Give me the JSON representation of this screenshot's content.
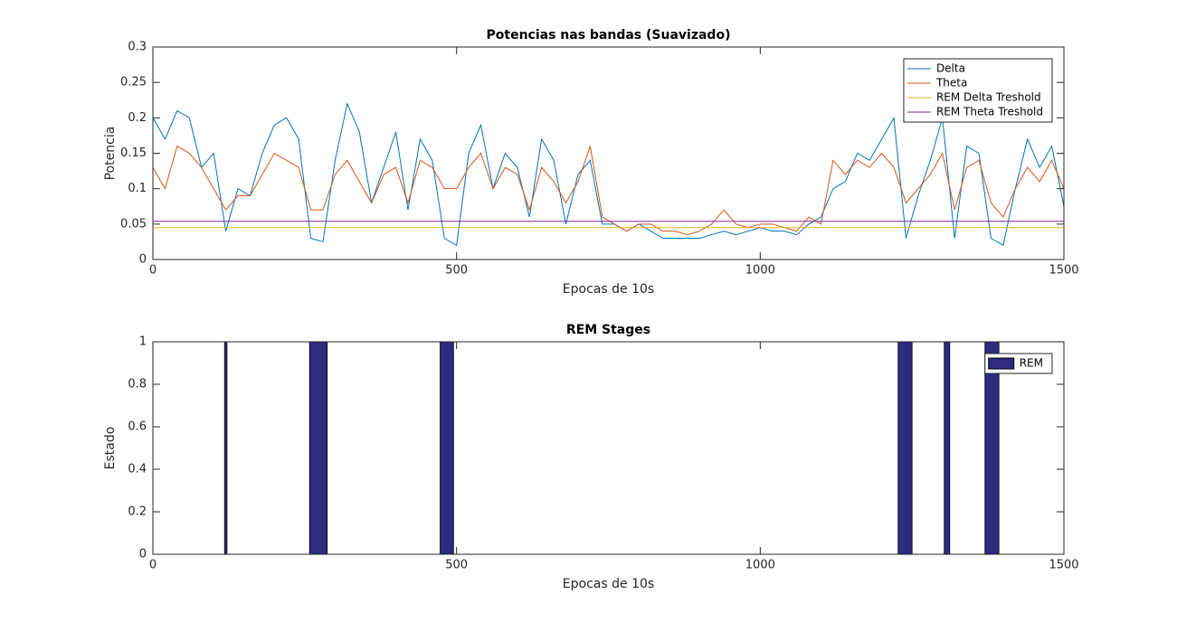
{
  "chart_data": [
    {
      "type": "line",
      "title": "Potencias nas bandas (Suavizado)",
      "x_label": "Epocas de 10s",
      "y_label": "Potencia",
      "x": [
        0,
        20,
        40,
        60,
        80,
        100,
        120,
        140,
        160,
        180,
        200,
        220,
        240,
        260,
        280,
        300,
        320,
        340,
        360,
        380,
        400,
        420,
        440,
        460,
        480,
        500,
        520,
        540,
        560,
        580,
        600,
        620,
        640,
        660,
        680,
        700,
        720,
        740,
        760,
        780,
        800,
        820,
        840,
        860,
        880,
        900,
        920,
        940,
        960,
        980,
        1000,
        1020,
        1040,
        1060,
        1080,
        1100,
        1120,
        1140,
        1160,
        1180,
        1200,
        1220,
        1240,
        1260,
        1280,
        1300,
        1320,
        1340,
        1360,
        1380,
        1400,
        1420,
        1440,
        1460,
        1480,
        1500
      ],
      "series": [
        {
          "name": "Delta",
          "color": "#0072bd",
          "values": [
            0.2,
            0.17,
            0.21,
            0.2,
            0.13,
            0.15,
            0.04,
            0.1,
            0.09,
            0.15,
            0.19,
            0.2,
            0.17,
            0.03,
            0.025,
            0.14,
            0.22,
            0.18,
            0.08,
            0.13,
            0.18,
            0.07,
            0.17,
            0.14,
            0.03,
            0.02,
            0.15,
            0.19,
            0.1,
            0.15,
            0.13,
            0.06,
            0.17,
            0.14,
            0.05,
            0.12,
            0.14,
            0.05,
            0.05,
            0.04,
            0.05,
            0.04,
            0.03,
            0.03,
            0.03,
            0.03,
            0.035,
            0.04,
            0.035,
            0.04,
            0.045,
            0.04,
            0.04,
            0.035,
            0.05,
            0.06,
            0.1,
            0.11,
            0.15,
            0.14,
            0.17,
            0.2,
            0.03,
            0.09,
            0.14,
            0.2,
            0.03,
            0.16,
            0.15,
            0.03,
            0.02,
            0.1,
            0.17,
            0.13,
            0.16,
            0.075
          ]
        },
        {
          "name": "Theta",
          "color": "#d95319",
          "values": [
            0.13,
            0.1,
            0.16,
            0.15,
            0.13,
            0.1,
            0.07,
            0.09,
            0.09,
            0.12,
            0.15,
            0.14,
            0.13,
            0.07,
            0.07,
            0.12,
            0.14,
            0.11,
            0.08,
            0.12,
            0.13,
            0.08,
            0.14,
            0.13,
            0.1,
            0.1,
            0.13,
            0.15,
            0.1,
            0.13,
            0.12,
            0.07,
            0.13,
            0.11,
            0.08,
            0.11,
            0.16,
            0.06,
            0.05,
            0.04,
            0.05,
            0.05,
            0.04,
            0.04,
            0.035,
            0.04,
            0.05,
            0.07,
            0.05,
            0.045,
            0.05,
            0.05,
            0.045,
            0.04,
            0.06,
            0.05,
            0.14,
            0.12,
            0.14,
            0.13,
            0.15,
            0.13,
            0.08,
            0.1,
            0.12,
            0.15,
            0.07,
            0.13,
            0.14,
            0.08,
            0.06,
            0.1,
            0.13,
            0.11,
            0.14,
            0.1
          ]
        },
        {
          "name": "REM Delta Treshold",
          "color": "#edb120",
          "values": [
            0.045,
            0.045,
            0.045,
            0.045,
            0.045,
            0.045,
            0.045,
            0.045,
            0.045,
            0.045,
            0.045,
            0.045,
            0.045,
            0.045,
            0.045,
            0.045,
            0.045,
            0.045,
            0.045,
            0.045,
            0.045,
            0.045,
            0.045,
            0.045,
            0.045,
            0.045,
            0.045,
            0.045,
            0.045,
            0.045,
            0.045,
            0.045,
            0.045,
            0.045,
            0.045,
            0.045,
            0.045,
            0.045,
            0.045,
            0.045,
            0.045,
            0.045,
            0.045,
            0.045,
            0.045,
            0.045,
            0.045,
            0.045,
            0.045,
            0.045,
            0.045,
            0.045,
            0.045,
            0.045,
            0.045,
            0.045,
            0.045,
            0.045,
            0.045,
            0.045,
            0.045,
            0.045,
            0.045,
            0.045,
            0.045,
            0.045,
            0.045,
            0.045,
            0.045,
            0.045,
            0.045,
            0.045,
            0.045,
            0.045,
            0.045,
            0.045
          ]
        },
        {
          "name": "REM Theta Treshold",
          "color": "#7e2f8e",
          "values": [
            0.054,
            0.054,
            0.054,
            0.054,
            0.054,
            0.054,
            0.054,
            0.054,
            0.054,
            0.054,
            0.054,
            0.054,
            0.054,
            0.054,
            0.054,
            0.054,
            0.054,
            0.054,
            0.054,
            0.054,
            0.054,
            0.054,
            0.054,
            0.054,
            0.054,
            0.054,
            0.054,
            0.054,
            0.054,
            0.054,
            0.054,
            0.054,
            0.054,
            0.054,
            0.054,
            0.054,
            0.054,
            0.054,
            0.054,
            0.054,
            0.054,
            0.054,
            0.054,
            0.054,
            0.054,
            0.054,
            0.054,
            0.054,
            0.054,
            0.054,
            0.054,
            0.054,
            0.054,
            0.054,
            0.054,
            0.054,
            0.054,
            0.054,
            0.054,
            0.054,
            0.054,
            0.054,
            0.054,
            0.054,
            0.054,
            0.054,
            0.054,
            0.054,
            0.054,
            0.054,
            0.054,
            0.054,
            0.054,
            0.054,
            0.054,
            0.054
          ]
        }
      ],
      "xlim": [
        0,
        1500
      ],
      "xticks": [
        0,
        500,
        1000,
        1500
      ],
      "ylim": [
        0,
        0.3
      ],
      "yticks": [
        0,
        0.05,
        0.1,
        0.15,
        0.2,
        0.25,
        0.3
      ],
      "legend": "northeast"
    },
    {
      "type": "area",
      "title": "REM Stages",
      "x_label": "Epocas de 10s",
      "y_label": "Estado",
      "x": [
        0,
        118,
        118,
        122,
        122,
        258,
        258,
        287,
        287,
        473,
        473,
        495,
        495,
        1227,
        1227,
        1250,
        1250,
        1303,
        1303,
        1312,
        1312,
        1370,
        1370,
        1393,
        1393,
        1500
      ],
      "series": [
        {
          "name": "REM",
          "color": "#2e2a82",
          "values": [
            0,
            0,
            1,
            1,
            0,
            0,
            1,
            1,
            0,
            0,
            1,
            1,
            0,
            0,
            1,
            1,
            0,
            0,
            1,
            1,
            0,
            0,
            1,
            1,
            0,
            0
          ]
        }
      ],
      "xlim": [
        0,
        1500
      ],
      "xticks": [
        0,
        500,
        1000,
        1500
      ],
      "ylim": [
        0,
        1
      ],
      "yticks": [
        0,
        0.2,
        0.4,
        0.6,
        0.8,
        1
      ],
      "legend": "northeast"
    }
  ]
}
